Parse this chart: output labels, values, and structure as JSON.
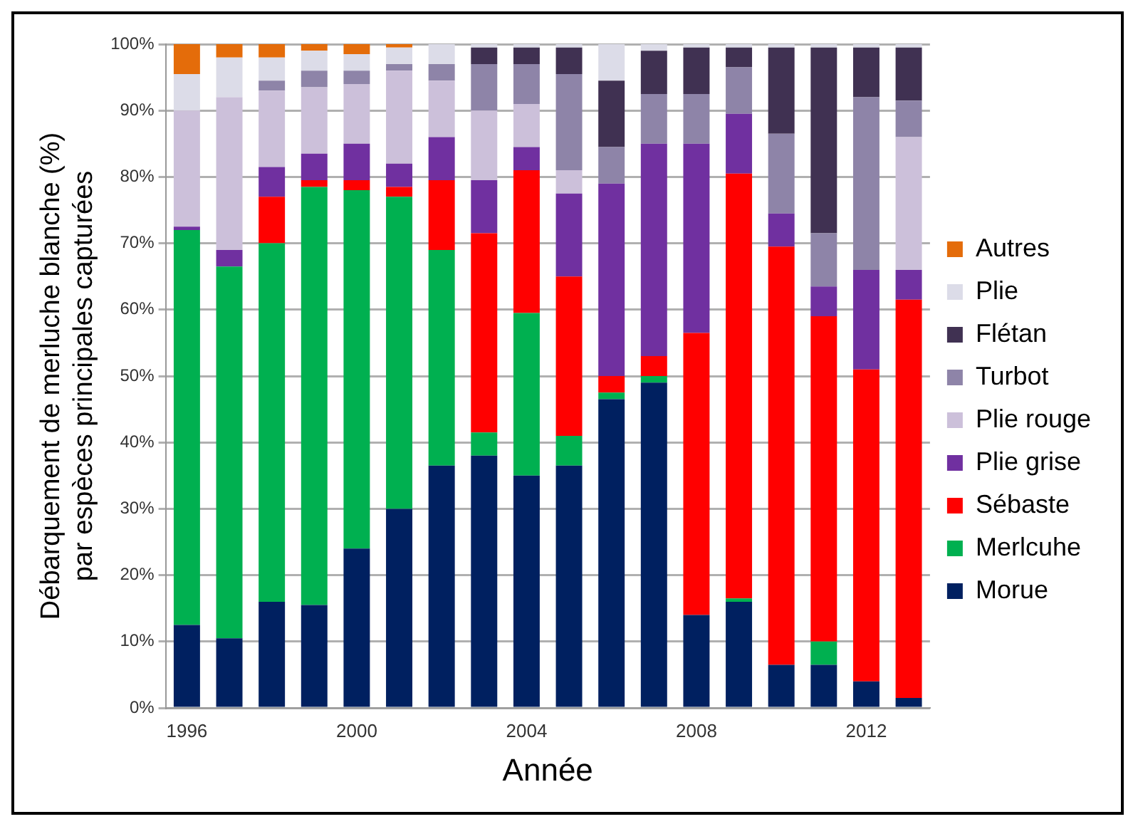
{
  "chart_data": {
    "type": "bar",
    "stacked": true,
    "xlabel": "Année",
    "ylabel": "Débarquement de merluche blanche (%)\npar espèces principales capturées",
    "categories": [
      "1996",
      null,
      null,
      null,
      "2000",
      null,
      null,
      null,
      "2004",
      null,
      null,
      null,
      "2008",
      null,
      null,
      null,
      "2012",
      null
    ],
    "ylim": [
      0,
      100
    ],
    "yticks": [
      {
        "value": 0,
        "label": "0%"
      },
      {
        "value": 10,
        "label": "10%"
      },
      {
        "value": 20,
        "label": "20%"
      },
      {
        "value": 30,
        "label": "30%"
      },
      {
        "value": 40,
        "label": "40%"
      },
      {
        "value": 50,
        "label": "50%"
      },
      {
        "value": 60,
        "label": "60%"
      },
      {
        "value": 70,
        "label": "70%"
      },
      {
        "value": 80,
        "label": "80%"
      },
      {
        "value": 90,
        "label": "90%"
      },
      {
        "value": 100,
        "label": "100%"
      }
    ],
    "grid": "y",
    "legend": "right",
    "series": [
      {
        "name": "Morue",
        "color": "#002060",
        "values": [
          12.5,
          10.5,
          16,
          15.5,
          24,
          30,
          36.5,
          38,
          35,
          36.5,
          46.5,
          49,
          14,
          16,
          6.5,
          6.5,
          4,
          1.5
        ]
      },
      {
        "name": "Merlcuhe",
        "color": "#00b050",
        "values": [
          59.5,
          56,
          54,
          63,
          54,
          47,
          32.5,
          3.5,
          24.5,
          4.5,
          1,
          1,
          0,
          0.5,
          0,
          3.5,
          0,
          0
        ]
      },
      {
        "name": "Sébaste",
        "color": "#ff0000",
        "values": [
          0,
          0,
          7,
          1,
          1.5,
          1.5,
          10.5,
          30,
          21.5,
          24,
          2.5,
          3,
          42.5,
          64,
          63,
          49,
          47,
          60
        ]
      },
      {
        "name": "Plie grise",
        "color": "#7030a0",
        "values": [
          0.5,
          2.5,
          4.5,
          4,
          5.5,
          3.5,
          6.5,
          8,
          3.5,
          12.5,
          29,
          32,
          28.5,
          9,
          5,
          4.5,
          15,
          4.5
        ]
      },
      {
        "name": "Plie rouge",
        "color": "#ccc0da",
        "values": [
          17.5,
          23,
          11.5,
          10,
          9,
          14,
          8.5,
          10.5,
          6.5,
          3.5,
          0,
          0,
          0,
          0,
          0,
          0,
          0,
          20
        ]
      },
      {
        "name": "Turbot",
        "color": "#8e84a8",
        "values": [
          0,
          0,
          1.5,
          2.5,
          2,
          1,
          2.5,
          7,
          6,
          14.5,
          5.5,
          7.5,
          7.5,
          7,
          12,
          8,
          26,
          5.5
        ]
      },
      {
        "name": "Flétan",
        "color": "#403152",
        "values": [
          0,
          0,
          0,
          0,
          0,
          0,
          0,
          2.5,
          2.5,
          4,
          10,
          6.5,
          7,
          3,
          13,
          28,
          7.5,
          8
        ]
      },
      {
        "name": "Plie",
        "color": "#dcdce8",
        "values": [
          5.5,
          6,
          3.5,
          3,
          2.5,
          2.5,
          3,
          0.5,
          0.5,
          0.5,
          5.5,
          1,
          0.5,
          0.5,
          0.5,
          0.5,
          0.5,
          0.5
        ]
      },
      {
        "name": "Autres",
        "color": "#e46c0a",
        "values": [
          4.5,
          2,
          2,
          1,
          1.5,
          0.5,
          0,
          0,
          0,
          0,
          0,
          0,
          0,
          0,
          0,
          0,
          0,
          0
        ]
      }
    ]
  }
}
